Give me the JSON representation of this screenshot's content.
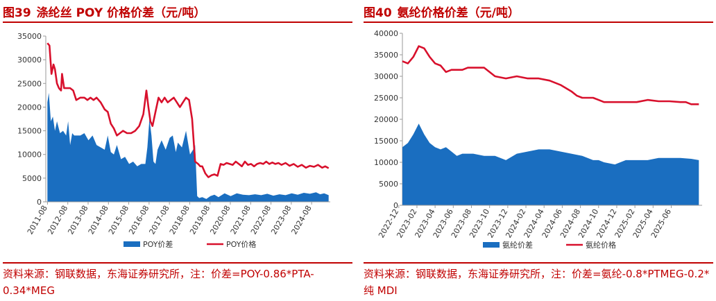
{
  "colors": {
    "title": "#c00000",
    "area": "#1a6ec0",
    "line": "#d8102c",
    "axis": "#9a9a9a"
  },
  "chart_data": [
    {
      "type": "area",
      "title_no": "图39",
      "title": "涤纶丝 POY 价格价差（元/吨）",
      "ylim": [
        0,
        35000
      ],
      "yticks": [
        0,
        5000,
        10000,
        15000,
        20000,
        25000,
        30000,
        35000
      ],
      "ytick_labels": [
        "0",
        "5000",
        "10000",
        "15000",
        "20000",
        "25000",
        "30000",
        "35000"
      ],
      "xlim": [
        2011.5,
        2025.5
      ],
      "xticks": [
        "2011-08",
        "2012-08",
        "2013-08",
        "2014-08",
        "2015-08",
        "2016-08",
        "2017-08",
        "2018-08",
        "2019-08",
        "2020-08",
        "2021-08",
        "2022-08",
        "2023-08",
        "2024-08"
      ],
      "legend": "bottom-center",
      "grid": false,
      "series": [
        {
          "name": "POY价差",
          "kind": "area",
          "x": [
            2011.58,
            2011.65,
            2011.75,
            2011.85,
            2011.95,
            2012.05,
            2012.2,
            2012.35,
            2012.5,
            2012.6,
            2012.7,
            2012.8,
            2012.9,
            2013.0,
            2013.2,
            2013.4,
            2013.6,
            2013.8,
            2014.0,
            2014.2,
            2014.4,
            2014.55,
            2014.7,
            2014.85,
            2015.0,
            2015.2,
            2015.4,
            2015.6,
            2015.8,
            2016.0,
            2016.2,
            2016.4,
            2016.5,
            2016.6,
            2016.7,
            2016.8,
            2016.9,
            2017.0,
            2017.2,
            2017.4,
            2017.6,
            2017.75,
            2017.9,
            2018.0,
            2018.2,
            2018.4,
            2018.6,
            2018.75,
            2018.85,
            2018.95,
            2019.05,
            2019.2,
            2019.4,
            2019.6,
            2019.8,
            2020.0,
            2020.3,
            2020.6,
            2020.9,
            2021.2,
            2021.5,
            2021.8,
            2022.1,
            2022.4,
            2022.7,
            2023.0,
            2023.3,
            2023.6,
            2023.9,
            2024.2,
            2024.5,
            2024.8,
            2025.0,
            2025.2,
            2025.42
          ],
          "y": [
            21000,
            23000,
            17000,
            18000,
            15000,
            17000,
            14500,
            15000,
            14000,
            17000,
            12000,
            14500,
            14000,
            14000,
            14000,
            14500,
            13000,
            14000,
            12000,
            11500,
            11000,
            14000,
            10500,
            10000,
            12000,
            9000,
            9500,
            8000,
            8500,
            7500,
            8000,
            8000,
            11500,
            17500,
            14000,
            8500,
            8000,
            11000,
            13000,
            11000,
            13500,
            14000,
            10500,
            12500,
            11500,
            15000,
            10000,
            11000,
            12000,
            1200,
            800,
            1000,
            600,
            1200,
            1500,
            1000,
            1800,
            1200,
            1800,
            1500,
            1400,
            1600,
            1400,
            1700,
            1300,
            1600,
            1400,
            1800,
            1500,
            1900,
            1700,
            2000,
            1600,
            1800,
            1400
          ]
        },
        {
          "name": "POY价格",
          "kind": "line",
          "x": [
            2011.58,
            2011.68,
            2011.78,
            2011.88,
            2011.95,
            2012.05,
            2012.15,
            2012.25,
            2012.3,
            2012.4,
            2012.5,
            2012.6,
            2012.7,
            2012.85,
            2013.0,
            2013.2,
            2013.4,
            2013.55,
            2013.7,
            2013.85,
            2014.0,
            2014.2,
            2014.4,
            2014.55,
            2014.7,
            2014.85,
            2015.0,
            2015.15,
            2015.3,
            2015.5,
            2015.7,
            2015.9,
            2016.1,
            2016.3,
            2016.45,
            2016.55,
            2016.65,
            2016.75,
            2016.9,
            2017.05,
            2017.2,
            2017.35,
            2017.5,
            2017.65,
            2017.8,
            2017.95,
            2018.1,
            2018.25,
            2018.4,
            2018.55,
            2018.7,
            2018.85,
            2019.0,
            2019.1,
            2019.2,
            2019.35,
            2019.5,
            2019.65,
            2019.8,
            2019.95,
            2020.1,
            2020.25,
            2020.4,
            2020.55,
            2020.7,
            2020.85,
            2021.0,
            2021.15,
            2021.3,
            2021.45,
            2021.6,
            2021.75,
            2021.9,
            2022.05,
            2022.2,
            2022.35,
            2022.5,
            2022.65,
            2022.8,
            2022.95,
            2023.1,
            2023.3,
            2023.5,
            2023.7,
            2023.9,
            2024.1,
            2024.3,
            2024.5,
            2024.7,
            2024.9,
            2025.1,
            2025.25,
            2025.42
          ],
          "y": [
            33500,
            33000,
            27000,
            29000,
            28000,
            25000,
            24000,
            23500,
            27000,
            24000,
            24000,
            24000,
            24000,
            23500,
            21500,
            22000,
            22000,
            21500,
            22000,
            21500,
            22000,
            21000,
            19500,
            19000,
            16500,
            15500,
            14000,
            14500,
            15000,
            14500,
            14500,
            15000,
            16000,
            18500,
            23500,
            20000,
            17000,
            16000,
            19000,
            22000,
            21000,
            22000,
            21000,
            21500,
            22000,
            21000,
            20000,
            21000,
            22000,
            21500,
            17500,
            8500,
            8000,
            7500,
            7500,
            6000,
            5200,
            5600,
            5800,
            5500,
            8000,
            7800,
            8200,
            8000,
            7800,
            8500,
            8000,
            7500,
            8500,
            7800,
            8000,
            7500,
            8000,
            8200,
            8000,
            8500,
            8000,
            8300,
            8000,
            8200,
            7800,
            8200,
            7600,
            8000,
            7400,
            7800,
            7200,
            7600,
            7400,
            7800,
            7200,
            7500,
            7100
          ]
        }
      ]
    },
    {
      "type": "area",
      "title_no": "图40",
      "title": "氨纶价格价差（元/吨）",
      "ylim": [
        0,
        40000
      ],
      "yticks": [
        0,
        5000,
        10000,
        15000,
        20000,
        25000,
        30000,
        35000,
        40000
      ],
      "ytick_labels": [
        "0",
        "5000",
        "10000",
        "15000",
        "20000",
        "25000",
        "30000",
        "35000",
        "40000"
      ],
      "xlim": [
        2022.95,
        2025.7
      ],
      "xticks": [
        "2022-12",
        "2023-02",
        "2023-04",
        "2023-06",
        "2023-08",
        "2023-10",
        "2023-12",
        "2024-02",
        "2024-04",
        "2024-06",
        "2024-08",
        "2024-10",
        "2024-12",
        "2025-02",
        "2025-04",
        "2025-06"
      ],
      "legend": "bottom-center",
      "grid": false,
      "series": [
        {
          "name": "氨纶价差",
          "kind": "area",
          "x": [
            2022.95,
            2023.0,
            2023.05,
            2023.1,
            2023.15,
            2023.2,
            2023.25,
            2023.3,
            2023.35,
            2023.4,
            2023.45,
            2023.5,
            2023.55,
            2023.6,
            2023.7,
            2023.8,
            2023.9,
            2024.0,
            2024.1,
            2024.2,
            2024.3,
            2024.4,
            2024.5,
            2024.6,
            2024.7,
            2024.75,
            2024.8,
            2024.9,
            2025.0,
            2025.1,
            2025.2,
            2025.3,
            2025.4,
            2025.5,
            2025.6,
            2025.67
          ],
          "y": [
            13500,
            14500,
            16500,
            19000,
            16500,
            14500,
            13500,
            13000,
            13500,
            12500,
            11500,
            12000,
            12000,
            12000,
            11500,
            11500,
            10500,
            12000,
            12500,
            13000,
            13000,
            12500,
            12000,
            11500,
            10500,
            10500,
            10000,
            9500,
            10500,
            10500,
            10500,
            11000,
            11000,
            11000,
            10800,
            10500
          ]
        },
        {
          "name": "氨纶价格",
          "kind": "line",
          "x": [
            2022.95,
            2023.0,
            2023.05,
            2023.1,
            2023.15,
            2023.2,
            2023.25,
            2023.3,
            2023.35,
            2023.4,
            2023.45,
            2023.5,
            2023.55,
            2023.6,
            2023.7,
            2023.8,
            2023.9,
            2024.0,
            2024.1,
            2024.2,
            2024.3,
            2024.4,
            2024.5,
            2024.55,
            2024.6,
            2024.7,
            2024.75,
            2024.8,
            2024.9,
            2025.0,
            2025.1,
            2025.2,
            2025.3,
            2025.4,
            2025.5,
            2025.55,
            2025.6,
            2025.67
          ],
          "y": [
            33500,
            33000,
            34500,
            37000,
            36500,
            34500,
            33000,
            32500,
            31000,
            31500,
            31500,
            31500,
            32000,
            32000,
            32000,
            30000,
            29500,
            30000,
            29500,
            29500,
            29000,
            28000,
            26500,
            25500,
            25000,
            25000,
            24500,
            24000,
            24000,
            24000,
            24000,
            24500,
            24200,
            24200,
            24000,
            24000,
            23500,
            23500
          ]
        }
      ]
    }
  ],
  "sources": [
    "资料来源：钢联数据，东海证券研究所，注：价差=POY-0.86*PTA-0.34*MEG",
    "资料来源：钢联数据，东海证券研究所，注：价差=氨纶-0.8*PTMEG-0.2*纯 MDI"
  ]
}
